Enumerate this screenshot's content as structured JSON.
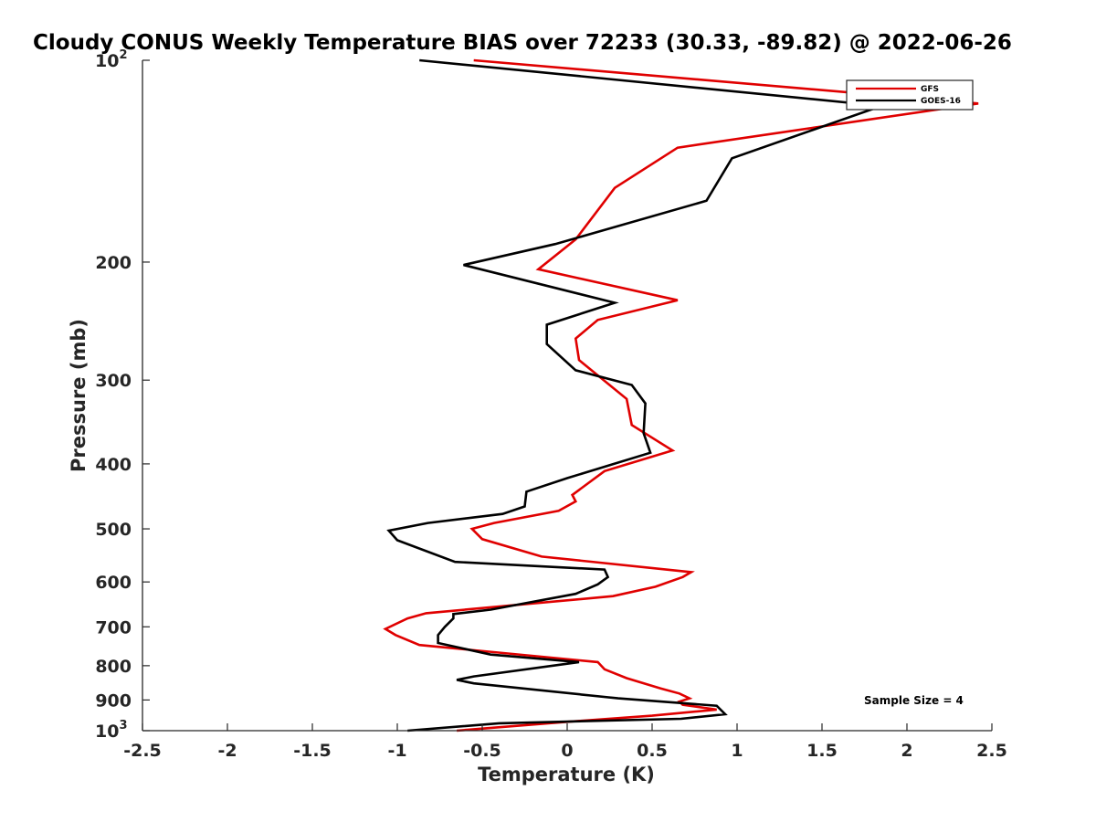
{
  "chart_data": {
    "type": "line",
    "title": "Cloudy CONUS Weekly Temperature BIAS over 72233 (30.33, -89.82) @ 2022-06-26",
    "xlabel": "Temperature (K)",
    "ylabel": "Pressure (mb)",
    "xlim": [
      -2.5,
      2.5
    ],
    "ylim": [
      100,
      1000
    ],
    "y_scale": "log",
    "y_direction": "reversed",
    "x_ticks": [
      -2.5,
      -2,
      -1.5,
      -1,
      -0.5,
      0,
      0.5,
      1,
      1.5,
      2,
      2.5
    ],
    "x_tick_labels": [
      "-2.5",
      "-2",
      "-1.5",
      "-1",
      "-0.5",
      "0",
      "0.5",
      "1",
      "1.5",
      "2",
      "2.5"
    ],
    "y_ticks": [
      200,
      300,
      400,
      500,
      600,
      700,
      800,
      900
    ],
    "y_tick_labels": [
      "200",
      "300",
      "400",
      "500",
      "600",
      "700",
      "800",
      "900"
    ],
    "y_tick_base": "10",
    "y_tick_min_exp": "2",
    "y_tick_max_exp": "3",
    "grid": false,
    "legend_position": "top-right",
    "annotation": "Sample Size = 4",
    "series": [
      {
        "name": "GFS",
        "color": "#e00000",
        "points": [
          [
            -0.55,
            100
          ],
          [
            2.42,
            116
          ],
          [
            0.65,
            135
          ],
          [
            0.28,
            155
          ],
          [
            0.05,
            185
          ],
          [
            -0.17,
            205
          ],
          [
            0.65,
            228
          ],
          [
            0.18,
            244
          ],
          [
            0.05,
            260
          ],
          [
            0.07,
            280
          ],
          [
            0.35,
            320
          ],
          [
            0.38,
            350
          ],
          [
            0.62,
            382
          ],
          [
            0.22,
            410
          ],
          [
            0.03,
            445
          ],
          [
            0.05,
            455
          ],
          [
            -0.05,
            470
          ],
          [
            -0.43,
            490
          ],
          [
            -0.56,
            500
          ],
          [
            -0.5,
            518
          ],
          [
            -0.15,
            550
          ],
          [
            0.73,
            580
          ],
          [
            0.68,
            590
          ],
          [
            0.52,
            610
          ],
          [
            0.27,
            630
          ],
          [
            -0.83,
            668
          ],
          [
            -0.94,
            680
          ],
          [
            -1.07,
            705
          ],
          [
            -1.01,
            720
          ],
          [
            -0.87,
            745
          ],
          [
            0.18,
            790
          ],
          [
            0.22,
            810
          ],
          [
            0.35,
            835
          ],
          [
            0.55,
            865
          ],
          [
            0.66,
            880
          ],
          [
            0.72,
            895
          ],
          [
            0.66,
            905
          ],
          [
            0.68,
            915
          ],
          [
            0.88,
            930
          ],
          [
            0.5,
            950
          ],
          [
            0.0,
            970
          ],
          [
            -0.65,
            1000
          ]
        ]
      },
      {
        "name": "GOES-16",
        "color": "#000000",
        "points": [
          [
            -0.87,
            100
          ],
          [
            1.85,
            117
          ],
          [
            0.97,
            140
          ],
          [
            0.82,
            162
          ],
          [
            -0.07,
            188
          ],
          [
            -0.61,
            202
          ],
          [
            0.28,
            230
          ],
          [
            -0.12,
            248
          ],
          [
            -0.12,
            265
          ],
          [
            0.05,
            290
          ],
          [
            0.38,
            305
          ],
          [
            0.46,
            325
          ],
          [
            0.45,
            360
          ],
          [
            0.49,
            385
          ],
          [
            0.0,
            420
          ],
          [
            -0.24,
            440
          ],
          [
            -0.25,
            463
          ],
          [
            -0.38,
            475
          ],
          [
            -0.82,
            490
          ],
          [
            -1.05,
            503
          ],
          [
            -1.0,
            520
          ],
          [
            -0.66,
            560
          ],
          [
            0.22,
            575
          ],
          [
            0.24,
            590
          ],
          [
            0.18,
            605
          ],
          [
            0.05,
            625
          ],
          [
            -0.45,
            660
          ],
          [
            -0.67,
            670
          ],
          [
            -0.67,
            680
          ],
          [
            -0.72,
            700
          ],
          [
            -0.76,
            720
          ],
          [
            -0.76,
            740
          ],
          [
            -0.45,
            770
          ],
          [
            0.07,
            790
          ],
          [
            -0.55,
            830
          ],
          [
            -0.65,
            840
          ],
          [
            -0.55,
            850
          ],
          [
            0.3,
            895
          ],
          [
            0.88,
            918
          ],
          [
            0.93,
            945
          ],
          [
            0.67,
            960
          ],
          [
            -0.4,
            975
          ],
          [
            -0.94,
            1000
          ]
        ]
      }
    ]
  }
}
